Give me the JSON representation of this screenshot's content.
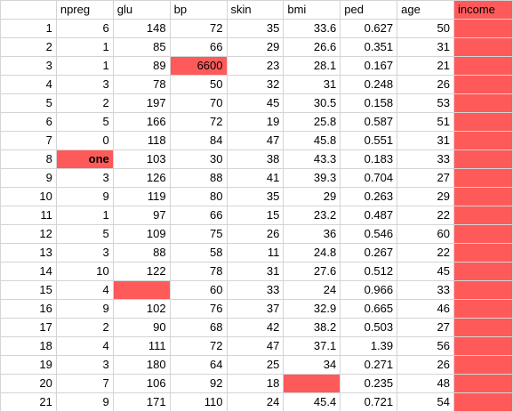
{
  "colors": {
    "highlight": "#ff5a5a",
    "grid": "#d4d4d4"
  },
  "columns": [
    "npreg",
    "glu",
    "bp",
    "skin",
    "bmi",
    "ped",
    "age",
    "income"
  ],
  "rows": [
    {
      "idx": "1",
      "cells": [
        "6",
        "148",
        "72",
        "35",
        "33.6",
        "0.627",
        "50",
        ""
      ],
      "flags": [
        false,
        false,
        false,
        false,
        false,
        false,
        false,
        true
      ]
    },
    {
      "idx": "2",
      "cells": [
        "1",
        "85",
        "66",
        "29",
        "26.6",
        "0.351",
        "31",
        ""
      ],
      "flags": [
        false,
        false,
        false,
        false,
        false,
        false,
        false,
        true
      ]
    },
    {
      "idx": "3",
      "cells": [
        "1",
        "89",
        "6600",
        "23",
        "28.1",
        "0.167",
        "21",
        ""
      ],
      "flags": [
        false,
        false,
        true,
        false,
        false,
        false,
        false,
        true
      ]
    },
    {
      "idx": "4",
      "cells": [
        "3",
        "78",
        "50",
        "32",
        "31",
        "0.248",
        "26",
        ""
      ],
      "flags": [
        false,
        false,
        false,
        false,
        false,
        false,
        false,
        true
      ]
    },
    {
      "idx": "5",
      "cells": [
        "2",
        "197",
        "70",
        "45",
        "30.5",
        "0.158",
        "53",
        ""
      ],
      "flags": [
        false,
        false,
        false,
        false,
        false,
        false,
        false,
        true
      ]
    },
    {
      "idx": "6",
      "cells": [
        "5",
        "166",
        "72",
        "19",
        "25.8",
        "0.587",
        "51",
        ""
      ],
      "flags": [
        false,
        false,
        false,
        false,
        false,
        false,
        false,
        true
      ]
    },
    {
      "idx": "7",
      "cells": [
        "0",
        "118",
        "84",
        "47",
        "45.8",
        "0.551",
        "31",
        ""
      ],
      "flags": [
        false,
        false,
        false,
        false,
        false,
        false,
        false,
        true
      ]
    },
    {
      "idx": "8",
      "cells": [
        "one",
        "103",
        "30",
        "38",
        "43.3",
        "0.183",
        "33",
        ""
      ],
      "flags": [
        true,
        false,
        false,
        false,
        false,
        false,
        false,
        true
      ],
      "bold": [
        true,
        false,
        false,
        false,
        false,
        false,
        false,
        false
      ]
    },
    {
      "idx": "9",
      "cells": [
        "3",
        "126",
        "88",
        "41",
        "39.3",
        "0.704",
        "27",
        ""
      ],
      "flags": [
        false,
        false,
        false,
        false,
        false,
        false,
        false,
        true
      ]
    },
    {
      "idx": "10",
      "cells": [
        "9",
        "119",
        "80",
        "35",
        "29",
        "0.263",
        "29",
        ""
      ],
      "flags": [
        false,
        false,
        false,
        false,
        false,
        false,
        false,
        true
      ]
    },
    {
      "idx": "11",
      "cells": [
        "1",
        "97",
        "66",
        "15",
        "23.2",
        "0.487",
        "22",
        ""
      ],
      "flags": [
        false,
        false,
        false,
        false,
        false,
        false,
        false,
        true
      ]
    },
    {
      "idx": "12",
      "cells": [
        "5",
        "109",
        "75",
        "26",
        "36",
        "0.546",
        "60",
        ""
      ],
      "flags": [
        false,
        false,
        false,
        false,
        false,
        false,
        false,
        true
      ]
    },
    {
      "idx": "13",
      "cells": [
        "3",
        "88",
        "58",
        "11",
        "24.8",
        "0.267",
        "22",
        ""
      ],
      "flags": [
        false,
        false,
        false,
        false,
        false,
        false,
        false,
        true
      ]
    },
    {
      "idx": "14",
      "cells": [
        "10",
        "122",
        "78",
        "31",
        "27.6",
        "0.512",
        "45",
        ""
      ],
      "flags": [
        false,
        false,
        false,
        false,
        false,
        false,
        false,
        true
      ]
    },
    {
      "idx": "15",
      "cells": [
        "4",
        "",
        "60",
        "33",
        "24",
        "0.966",
        "33",
        ""
      ],
      "flags": [
        false,
        true,
        false,
        false,
        false,
        false,
        false,
        true
      ]
    },
    {
      "idx": "16",
      "cells": [
        "9",
        "102",
        "76",
        "37",
        "32.9",
        "0.665",
        "46",
        ""
      ],
      "flags": [
        false,
        false,
        false,
        false,
        false,
        false,
        false,
        true
      ]
    },
    {
      "idx": "17",
      "cells": [
        "2",
        "90",
        "68",
        "42",
        "38.2",
        "0.503",
        "27",
        ""
      ],
      "flags": [
        false,
        false,
        false,
        false,
        false,
        false,
        false,
        true
      ]
    },
    {
      "idx": "18",
      "cells": [
        "4",
        "111",
        "72",
        "47",
        "37.1",
        "1.39",
        "56",
        ""
      ],
      "flags": [
        false,
        false,
        false,
        false,
        false,
        false,
        false,
        true
      ]
    },
    {
      "idx": "19",
      "cells": [
        "3",
        "180",
        "64",
        "25",
        "34",
        "0.271",
        "26",
        ""
      ],
      "flags": [
        false,
        false,
        false,
        false,
        false,
        false,
        false,
        true
      ]
    },
    {
      "idx": "20",
      "cells": [
        "7",
        "106",
        "92",
        "18",
        "",
        "0.235",
        "48",
        ""
      ],
      "flags": [
        false,
        false,
        false,
        false,
        true,
        false,
        false,
        true
      ]
    },
    {
      "idx": "21",
      "cells": [
        "9",
        "171",
        "110",
        "24",
        "45.4",
        "0.721",
        "54",
        ""
      ],
      "flags": [
        false,
        false,
        false,
        false,
        false,
        false,
        false,
        true
      ]
    }
  ]
}
